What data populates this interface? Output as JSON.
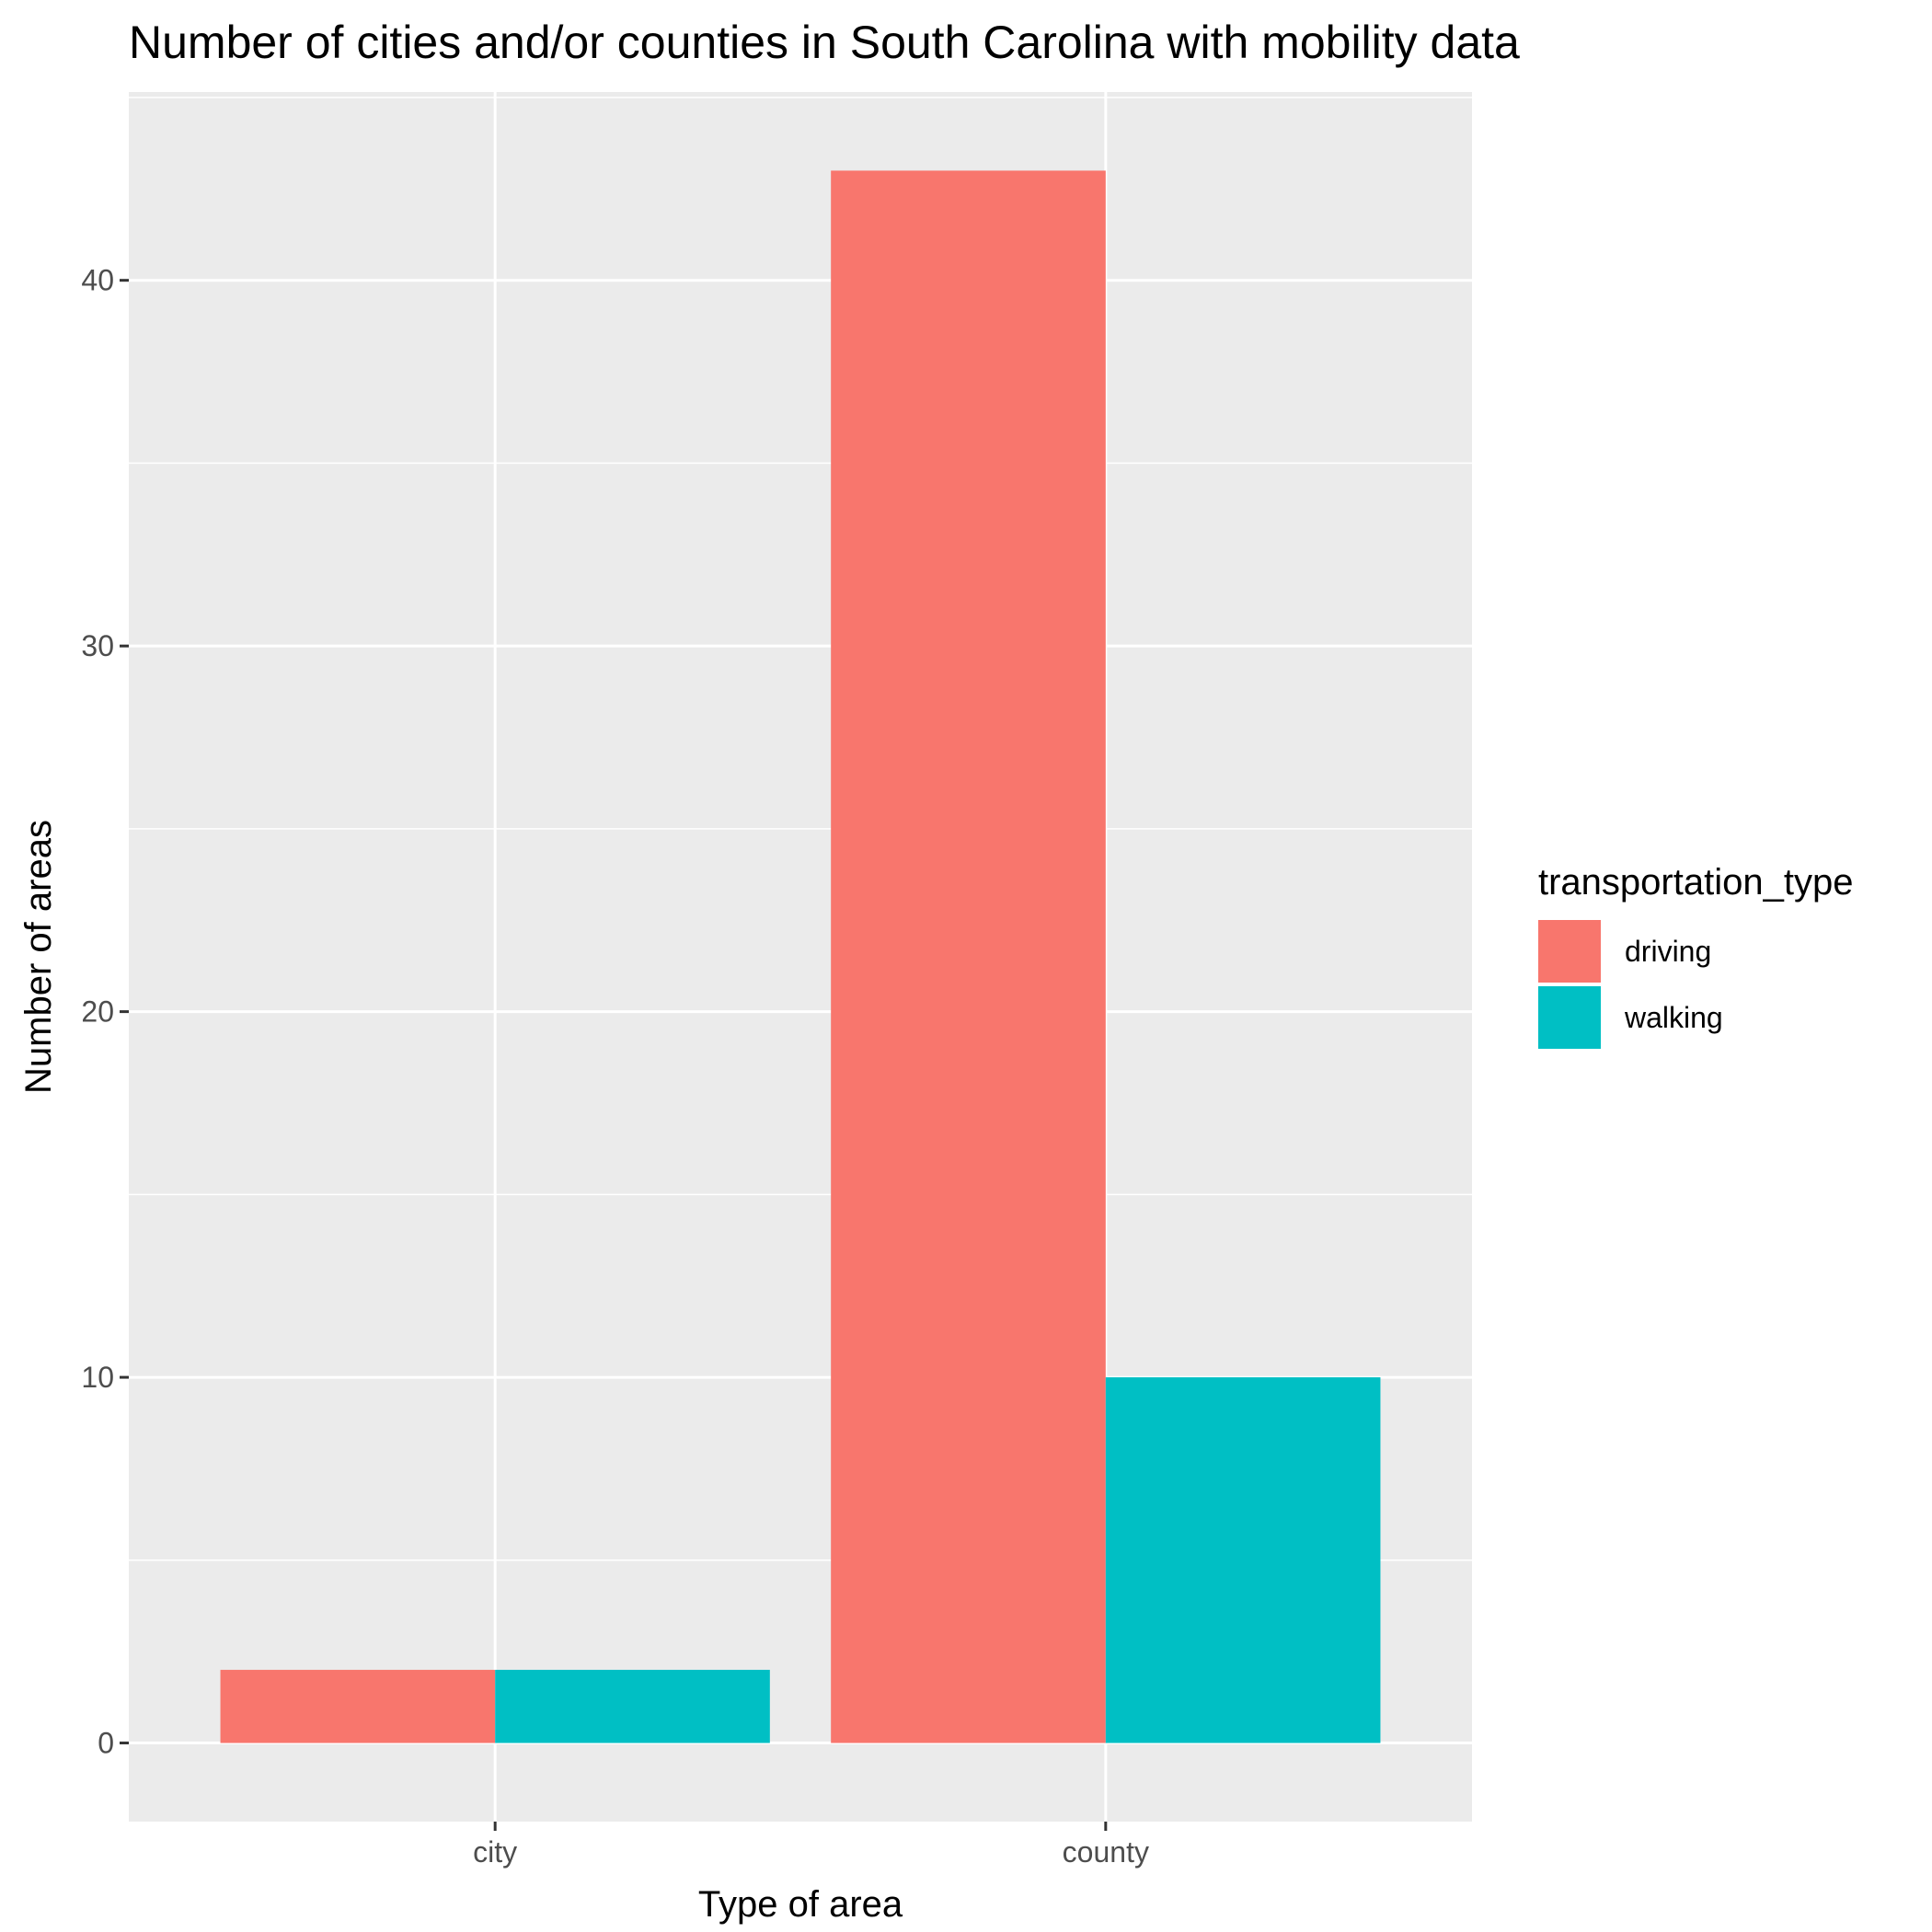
{
  "chart_data": {
    "type": "bar",
    "title": "Number of cities and/or counties in South Carolina with mobility data",
    "xlabel": "Type of area",
    "ylabel": "Number of areas",
    "categories": [
      "city",
      "county"
    ],
    "series": [
      {
        "name": "driving",
        "values": [
          2,
          43
        ],
        "color": "#F8766D"
      },
      {
        "name": "walking",
        "values": [
          2,
          10
        ],
        "color": "#00BFC4"
      }
    ],
    "ylim": [
      -2.15,
      45.15
    ],
    "yticks": [
      0,
      10,
      20,
      30,
      40
    ],
    "grid": true,
    "legend": {
      "title": "transportation_type",
      "position": "right"
    },
    "panel_color": "#EBEBEB",
    "grid_color": "#FFFFFF"
  }
}
